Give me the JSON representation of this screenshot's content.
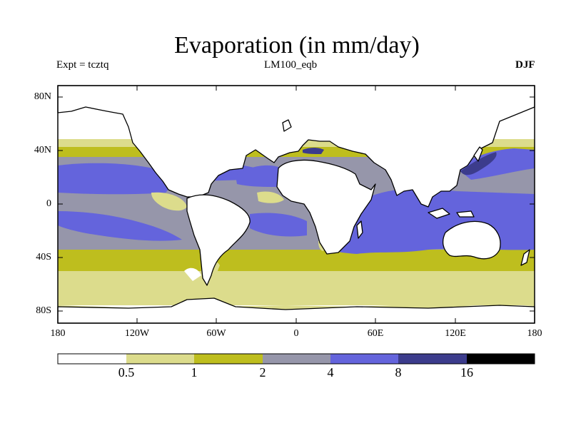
{
  "title": "Evaporation (in mm/day)",
  "experiment": "Expt = tcztq",
  "run": "LM100_eqb",
  "season": "DJF",
  "lat_labels": [
    "80N",
    "40N",
    "0",
    "40S",
    "80S"
  ],
  "lon_labels": [
    "180",
    "120W",
    "60W",
    "0",
    "60E",
    "120E",
    "180"
  ],
  "colorbar": {
    "labels": [
      "0.5",
      "1",
      "2",
      "4",
      "8",
      "16"
    ],
    "colors": [
      "#ffffff",
      "#dcdc8c",
      "#bebe1e",
      "#9696aa",
      "#6464dc",
      "#3c3c8c",
      "#000000"
    ]
  },
  "map_colors": {
    "land": "#ffffff",
    "coast": "#000000"
  }
}
